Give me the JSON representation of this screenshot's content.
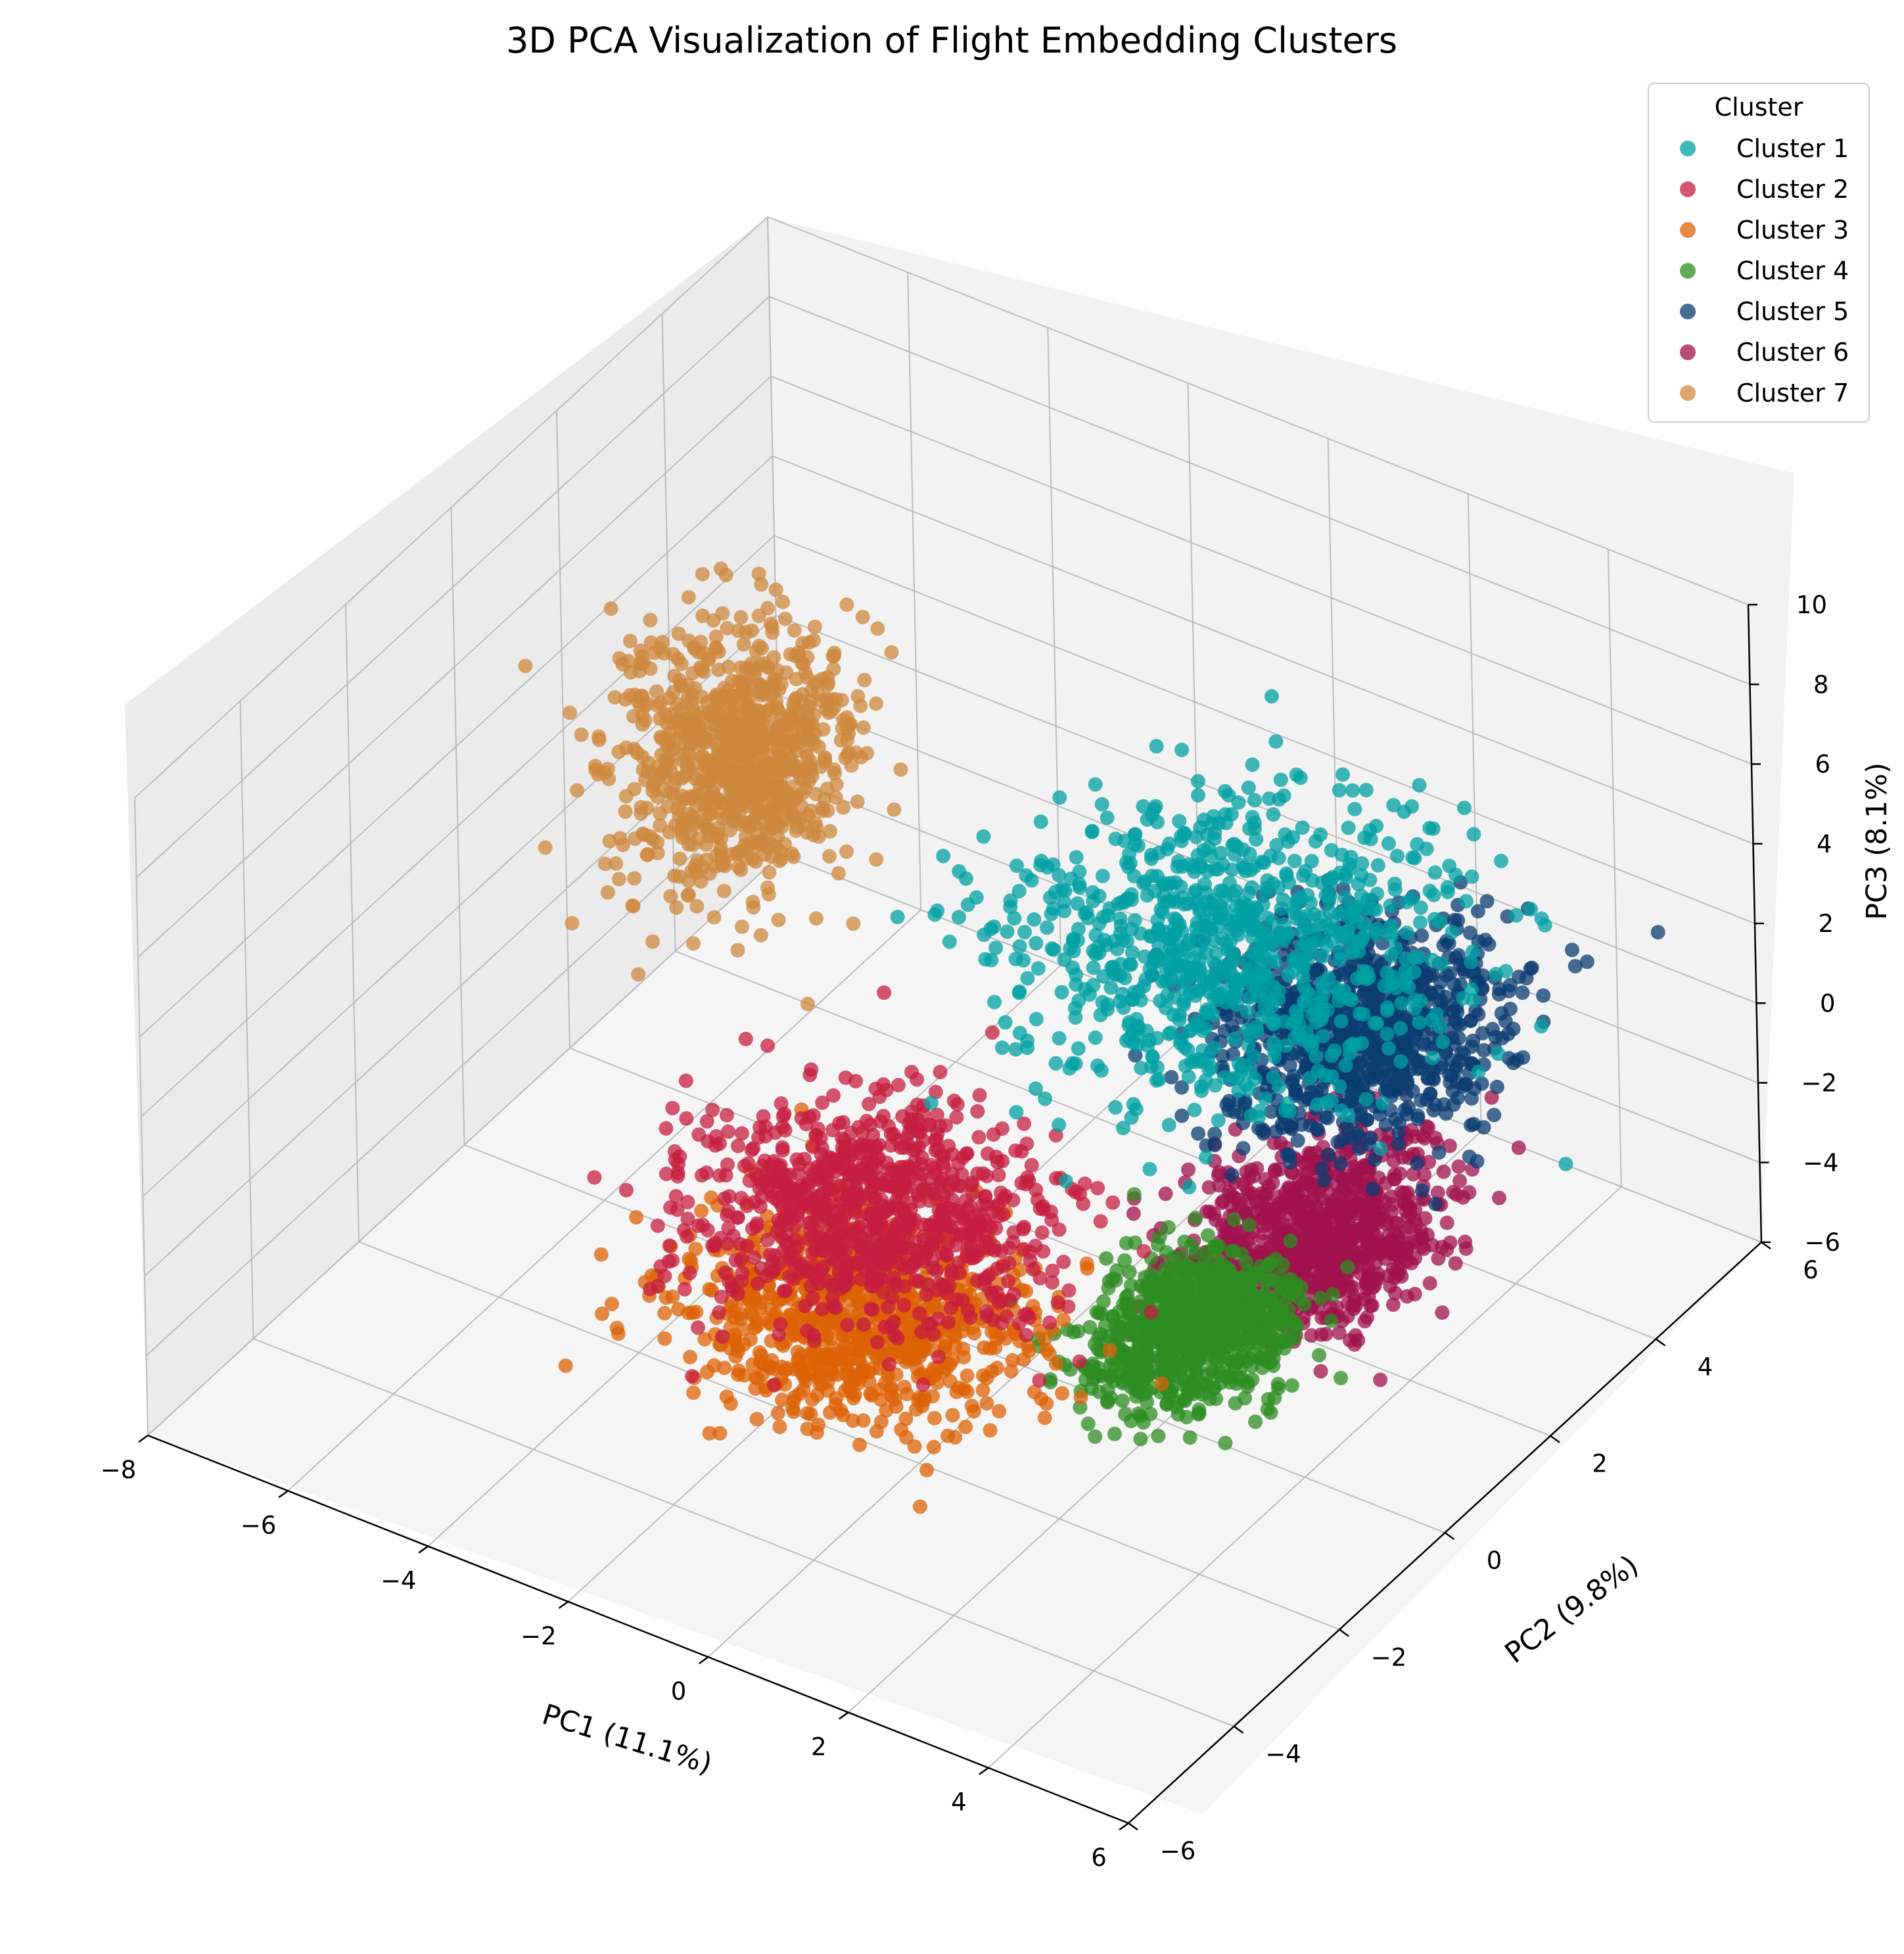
{
  "chart_data": {
    "type": "scatter",
    "projection": "3d",
    "title": "3D PCA Visualization of Flight Embedding Clusters",
    "xlabel": "PC1 (11.1%)",
    "ylabel": "PC2 (9.8%)",
    "zlabel": "PC3 (8.1%)",
    "xlim": [
      -8,
      6
    ],
    "ylim": [
      -6,
      6
    ],
    "zlim": [
      -6,
      10
    ],
    "xticks": [
      "−8",
      "−6",
      "−4",
      "−2",
      "0",
      "2",
      "4",
      "6"
    ],
    "yticks": [
      "−6",
      "−4",
      "−2",
      "0",
      "2",
      "4",
      "6"
    ],
    "zticks": [
      "−6",
      "−4",
      "−2",
      "0",
      "2",
      "4",
      "6",
      "8",
      "10"
    ],
    "grid": true,
    "legend": {
      "title": "Cluster",
      "placement": "top-right"
    },
    "series": [
      {
        "name": "Cluster 1",
        "color": "#00a0a3",
        "center": [
          1.5,
          2.0,
          3.0
        ],
        "spread": [
          2.4,
          2.2,
          1.8
        ]
      },
      {
        "name": "Cluster 2",
        "color": "#c51d3f",
        "center": [
          -1.0,
          -1.5,
          -1.0
        ],
        "spread": [
          2.0,
          1.6,
          1.0
        ]
      },
      {
        "name": "Cluster 3",
        "color": "#dc6206",
        "center": [
          -0.5,
          -2.5,
          -2.0
        ],
        "spread": [
          2.0,
          1.5,
          0.8
        ]
      },
      {
        "name": "Cluster 4",
        "color": "#2e8c22",
        "center": [
          2.8,
          -0.5,
          -2.5
        ],
        "spread": [
          1.0,
          1.2,
          0.8
        ]
      },
      {
        "name": "Cluster 5",
        "color": "#0b3c72",
        "center": [
          3.0,
          2.5,
          1.5
        ],
        "spread": [
          1.5,
          1.5,
          1.5
        ]
      },
      {
        "name": "Cluster 6",
        "color": "#a0124d",
        "center": [
          3.5,
          1.0,
          -1.5
        ],
        "spread": [
          1.2,
          1.5,
          1.0
        ]
      },
      {
        "name": "Cluster 7",
        "color": "#cd883e",
        "center": [
          -5.5,
          2.0,
          3.0
        ],
        "spread": [
          1.2,
          1.2,
          2.5
        ]
      }
    ]
  }
}
